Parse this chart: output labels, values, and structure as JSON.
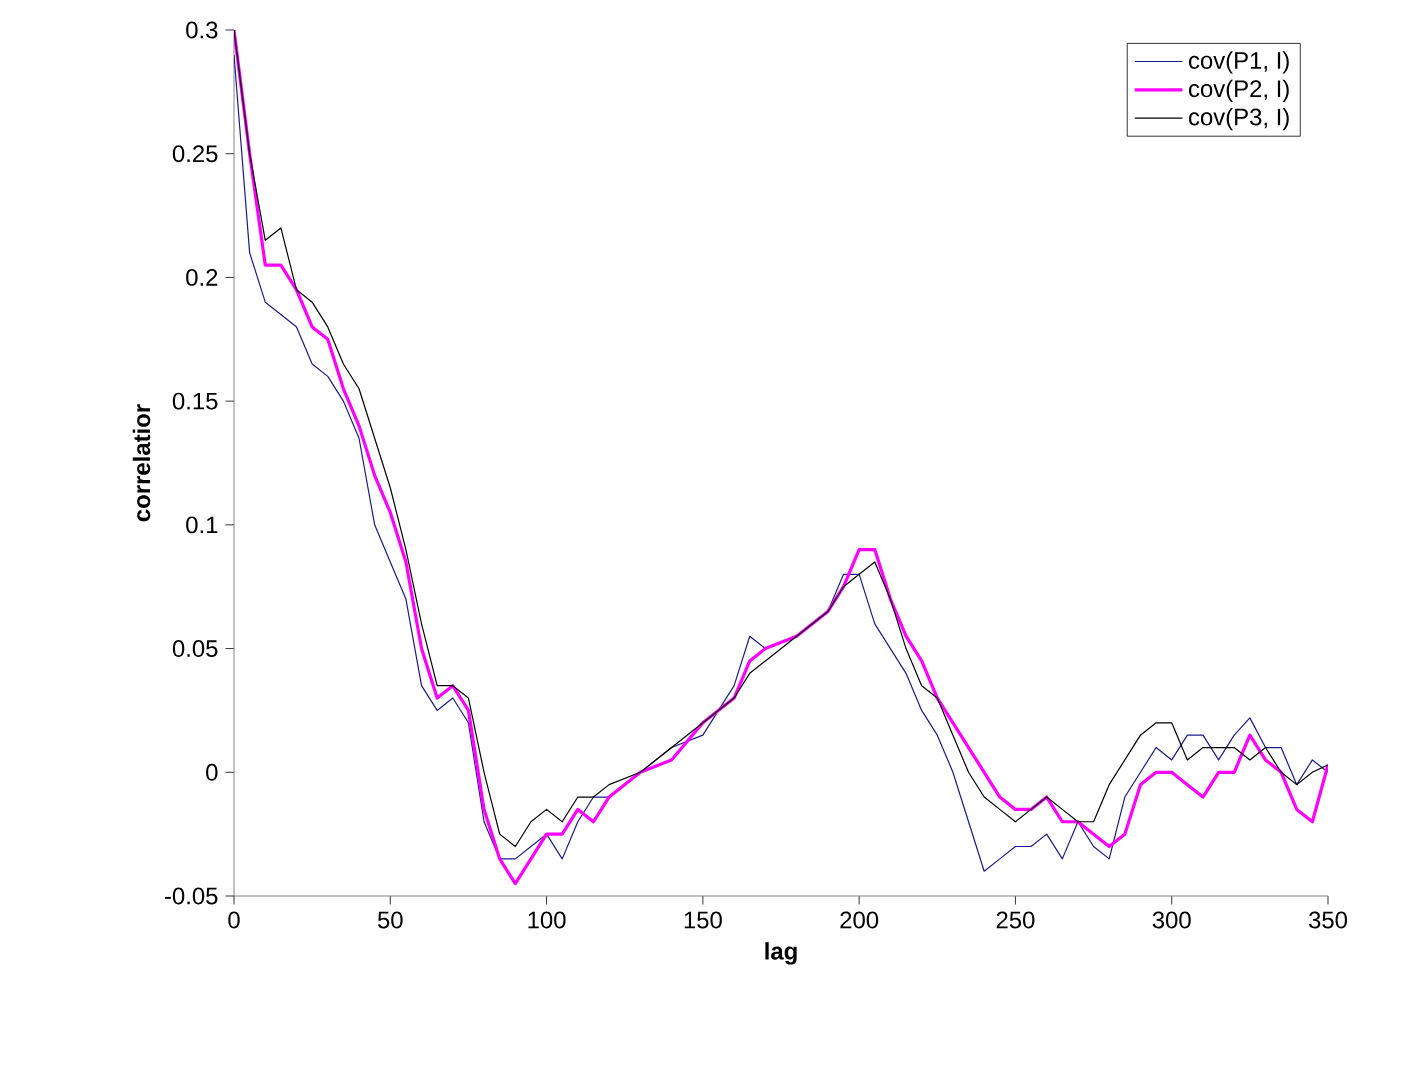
{
  "chart_data": {
    "type": "line",
    "xlabel": "lag",
    "ylabel": "correlatior",
    "xlim": [
      0,
      350
    ],
    "ylim": [
      -0.05,
      0.3
    ],
    "xticks": [
      0,
      50,
      100,
      150,
      200,
      250,
      300,
      350
    ],
    "yticks": [
      -0.05,
      0,
      0.05,
      0.1,
      0.15,
      0.2,
      0.25,
      0.3
    ],
    "grid": false,
    "legend": "top right",
    "marker": "none",
    "line_style": "solid",
    "x": [
      0,
      5,
      10,
      15,
      20,
      25,
      30,
      35,
      40,
      45,
      50,
      55,
      60,
      65,
      70,
      75,
      80,
      85,
      90,
      95,
      100,
      105,
      110,
      115,
      120,
      130,
      140,
      150,
      160,
      165,
      170,
      180,
      190,
      195,
      200,
      205,
      210,
      215,
      220,
      225,
      230,
      235,
      240,
      245,
      250,
      255,
      260,
      265,
      270,
      275,
      280,
      285,
      290,
      295,
      300,
      305,
      310,
      315,
      320,
      325,
      330,
      335,
      340,
      345,
      350
    ],
    "series": [
      {
        "name": "cov(P1, I)",
        "color": "#1a1a8c",
        "values": [
          0.29,
          0.21,
          0.19,
          0.185,
          0.18,
          0.165,
          0.16,
          0.15,
          0.135,
          0.1,
          0.085,
          0.07,
          0.035,
          0.025,
          0.03,
          0.02,
          -0.02,
          -0.035,
          -0.035,
          -0.03,
          -0.025,
          -0.035,
          -0.02,
          -0.01,
          -0.01,
          0.0,
          0.01,
          0.015,
          0.035,
          0.055,
          0.05,
          0.055,
          0.065,
          0.08,
          0.08,
          0.06,
          0.05,
          0.04,
          0.025,
          0.015,
          0.0,
          -0.02,
          -0.04,
          -0.035,
          -0.03,
          -0.03,
          -0.025,
          -0.035,
          -0.02,
          -0.03,
          -0.035,
          -0.01,
          0.0,
          0.01,
          0.005,
          0.015,
          0.015,
          0.005,
          0.015,
          0.022,
          0.01,
          0.01,
          -0.005,
          0.005,
          0.0
        ]
      },
      {
        "name": "cov(P2, I)",
        "color": "#ff00ff",
        "values": [
          0.3,
          0.25,
          0.205,
          0.205,
          0.195,
          0.18,
          0.175,
          0.155,
          0.14,
          0.12,
          0.105,
          0.085,
          0.05,
          0.03,
          0.035,
          0.025,
          -0.015,
          -0.035,
          -0.045,
          -0.035,
          -0.025,
          -0.025,
          -0.015,
          -0.02,
          -0.01,
          0.0,
          0.005,
          0.02,
          0.03,
          0.045,
          0.05,
          0.055,
          0.065,
          0.075,
          0.09,
          0.09,
          0.07,
          0.055,
          0.045,
          0.03,
          0.02,
          0.01,
          0.0,
          -0.01,
          -0.015,
          -0.015,
          -0.01,
          -0.02,
          -0.02,
          -0.025,
          -0.03,
          -0.025,
          -0.005,
          0.0,
          0.0,
          -0.005,
          -0.01,
          0.0,
          0.0,
          0.015,
          0.005,
          0.0,
          -0.015,
          -0.02,
          0.003
        ]
      },
      {
        "name": "cov(P3, I)",
        "color": "#000000",
        "values": [
          0.3,
          0.25,
          0.215,
          0.22,
          0.195,
          0.19,
          0.18,
          0.165,
          0.155,
          0.135,
          0.115,
          0.09,
          0.06,
          0.035,
          0.035,
          0.03,
          0.0,
          -0.025,
          -0.03,
          -0.02,
          -0.015,
          -0.02,
          -0.01,
          -0.01,
          -0.005,
          0.0,
          0.01,
          0.02,
          0.03,
          0.04,
          0.045,
          0.055,
          0.065,
          0.075,
          0.08,
          0.085,
          0.07,
          0.05,
          0.035,
          0.03,
          0.015,
          0.0,
          -0.01,
          -0.015,
          -0.02,
          -0.015,
          -0.01,
          -0.015,
          -0.02,
          -0.02,
          -0.005,
          0.005,
          0.015,
          0.02,
          0.02,
          0.005,
          0.01,
          0.01,
          0.01,
          0.005,
          0.01,
          0.0,
          -0.005,
          0.0,
          0.003
        ]
      }
    ]
  }
}
